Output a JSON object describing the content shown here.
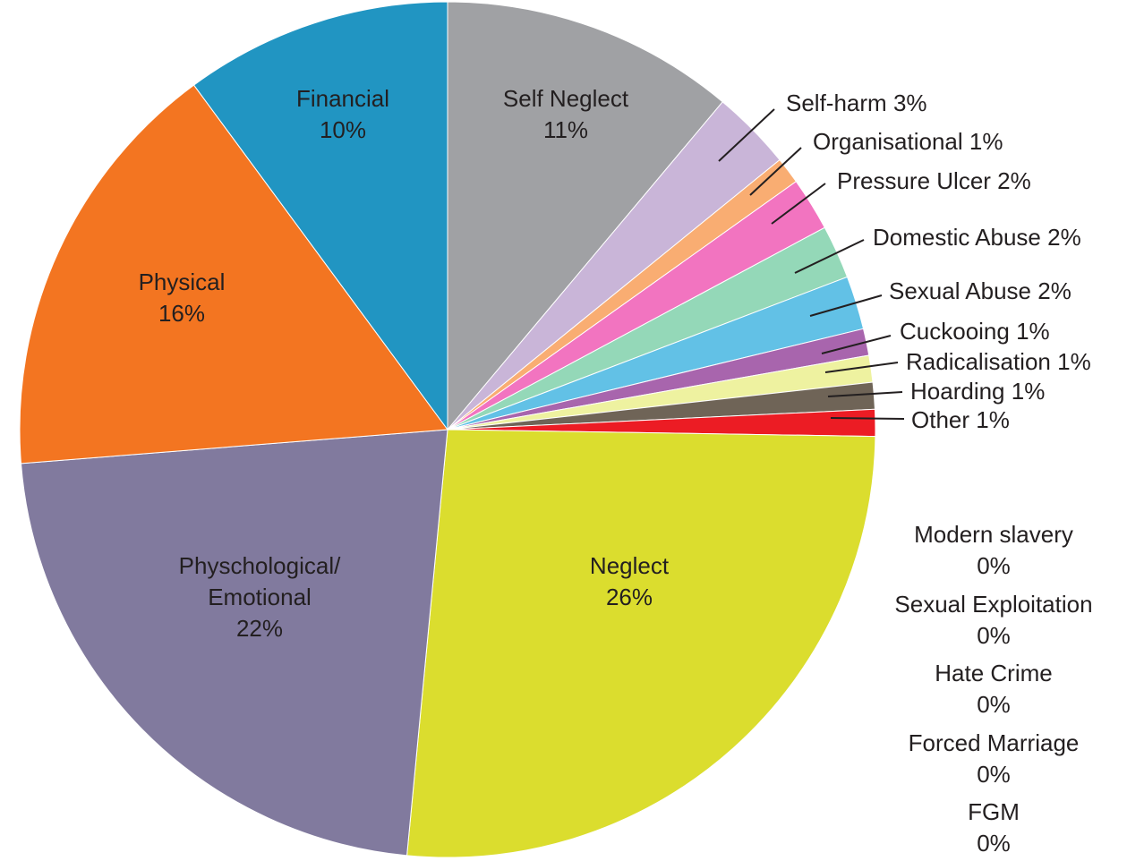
{
  "chart_data": {
    "type": "pie",
    "categories": [
      "Self Neglect",
      "Self-harm",
      "Organisational",
      "Pressure Ulcer",
      "Domestic Abuse",
      "Sexual Abuse",
      "Cuckooing",
      "Radicalisation",
      "Hoarding",
      "Other",
      "Neglect",
      "Physchological/ Emotional",
      "Physical",
      "Financial",
      "Modern slavery",
      "Sexual Exploitation",
      "Hate Crime",
      "Forced Marriage",
      "FGM"
    ],
    "values": [
      11,
      3,
      1,
      2,
      2,
      2,
      1,
      1,
      1,
      1,
      26,
      22,
      16,
      10,
      0,
      0,
      0,
      0,
      0
    ],
    "value_labels": [
      "11%",
      "3%",
      "1%",
      "2%",
      "2%",
      "2%",
      "1%",
      "1%",
      "1%",
      "1%",
      "26%",
      "22%",
      "16%",
      "10%",
      "0%",
      "0%",
      "0%",
      "0%",
      "0%"
    ],
    "colors": [
      "#a0a1a4",
      "#c9b5d8",
      "#f9ad72",
      "#f274c0",
      "#94d8b8",
      "#62c1e6",
      "#a865ad",
      "#eef2a0",
      "#6f6457",
      "#ec1c24",
      "#dbdd2e",
      "#817a9e",
      "#f37521",
      "#2195c2",
      null,
      null,
      null,
      null,
      null
    ]
  }
}
